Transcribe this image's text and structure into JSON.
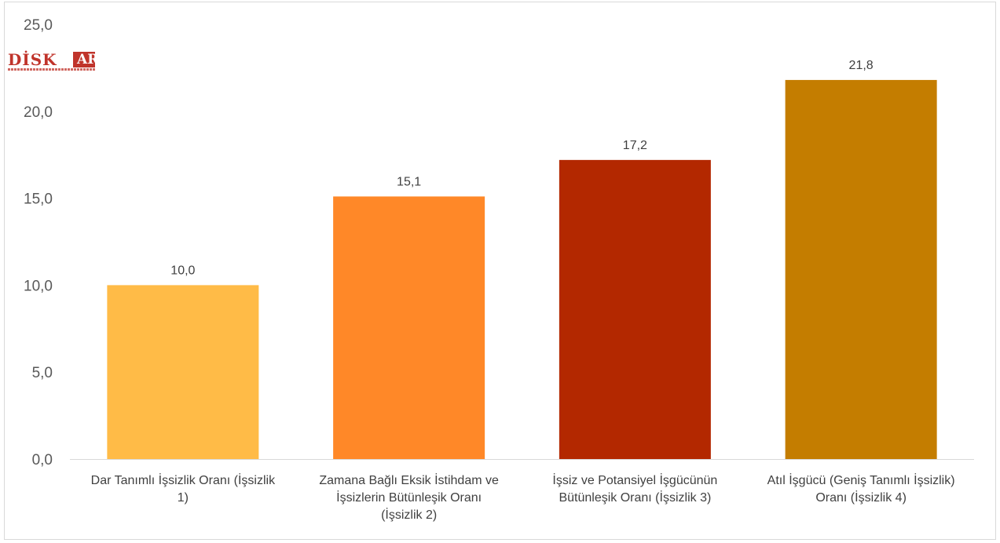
{
  "logo": {
    "text": "DİSK",
    "box_text": "AR"
  },
  "chart_data": {
    "type": "bar",
    "title": "",
    "xlabel": "",
    "ylabel": "",
    "ylim": [
      0,
      25
    ],
    "ytick_step": 5,
    "ytick_labels": [
      "0,0",
      "5,0",
      "10,0",
      "15,0",
      "20,0",
      "25,0"
    ],
    "grid": false,
    "categories": [
      "Dar Tanımlı İşsizlik Oranı (İşsizlik 1)",
      "Zamana Bağlı Eksik İstihdam ve İşsizlerin Bütünleşik Oranı (İşsizlik 2)",
      "İşsiz ve Potansiyel İşgücünün Bütünleşik Oranı (İşsizlik 3)",
      "Atıl İşgücü (Geniş Tanımlı İşsizlik) Oranı (İşsizlik 4)"
    ],
    "category_lines": [
      [
        "Dar Tanımlı İşsizlik Oranı (İşsizlik",
        "1)"
      ],
      [
        "Zamana Bağlı Eksik İstihdam ve",
        "İşsizlerin Bütünleşik Oranı",
        "(İşsizlik 2)"
      ],
      [
        "İşsiz ve Potansiyel İşgücünün",
        "Bütünleşik Oranı (İşsizlik 3)"
      ],
      [
        "Atıl İşgücü (Geniş Tanımlı İşsizlik)",
        "Oranı (İşsizlik 4)"
      ]
    ],
    "values": [
      10.0,
      15.1,
      17.2,
      21.8
    ],
    "value_labels": [
      "10,0",
      "15,1",
      "17,2",
      "21,8"
    ],
    "colors": [
      "#FFBB47",
      "#FF8828",
      "#B32800",
      "#C47D00"
    ]
  }
}
